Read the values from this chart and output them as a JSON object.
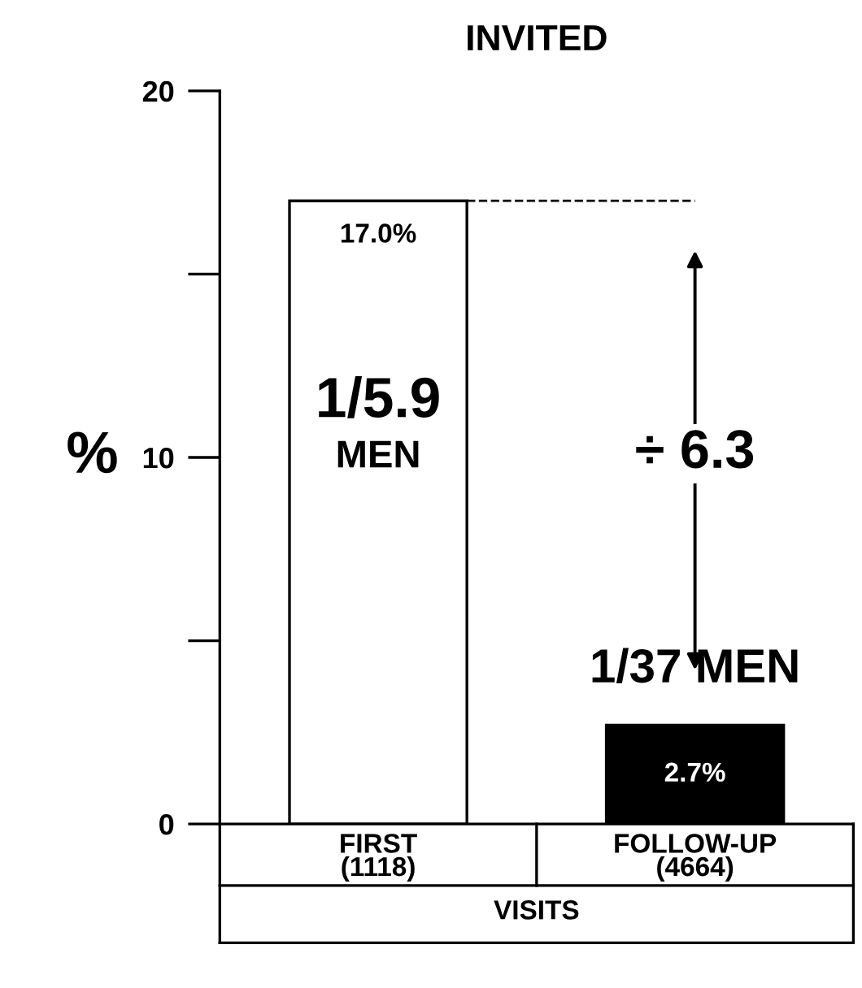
{
  "chart_data": {
    "type": "bar",
    "title": "INVITED",
    "ylabel": "%",
    "xlabel": "VISITS",
    "categories": [
      "FIRST\n(1118)",
      "FOLLOW-UP\n(4664)"
    ],
    "values": [
      17.0,
      2.7
    ],
    "colors": [
      "#ffffff",
      "#000000"
    ],
    "value_labels": [
      "17.0%",
      "2.7%"
    ],
    "ylim": [
      0,
      20
    ],
    "yticks": [
      0,
      10,
      20
    ],
    "ref_lines": [
      {
        "axis": "y",
        "value": 17.0,
        "line_style": "dashed",
        "color": "#000000"
      }
    ],
    "annotations": [
      "1/5.9",
      "MEN",
      "÷ 6.3",
      "1/37 MEN"
    ],
    "grid": false
  }
}
